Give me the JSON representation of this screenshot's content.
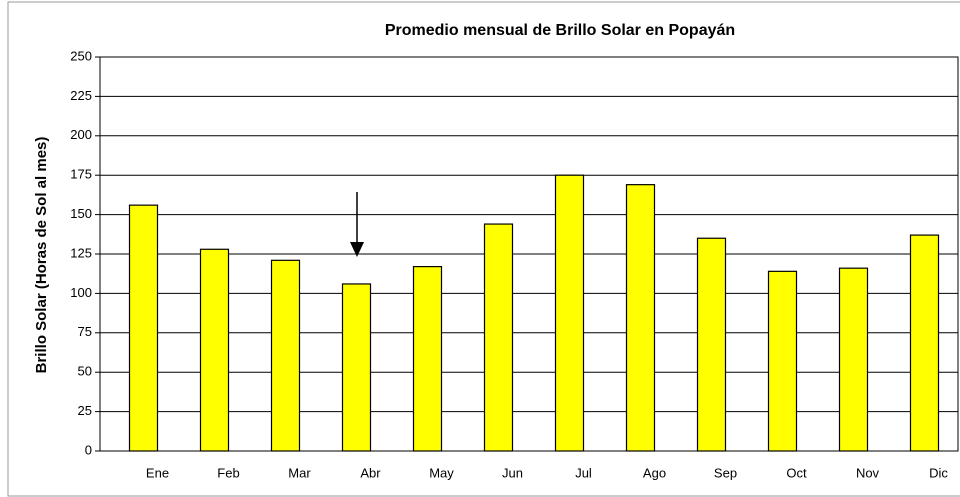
{
  "chart_data": {
    "type": "bar",
    "title": "Promedio mensual de Brillo Solar en Popayán",
    "y_label": "Brillo Solar (Horas de Sol al mes)",
    "categories": [
      "Ene",
      "Feb",
      "Mar",
      "Abr",
      "May",
      "Jun",
      "Jul",
      "Ago",
      "Sep",
      "Oct",
      "Nov",
      "Dic"
    ],
    "values": [
      156,
      128,
      121,
      106,
      117,
      144,
      175,
      169,
      135,
      114,
      116,
      137
    ],
    "color": "#ffff00",
    "ylim": [
      0,
      250
    ],
    "yticks": [
      0,
      25,
      50,
      75,
      100,
      125,
      150,
      175,
      200,
      225,
      250
    ],
    "grid": true
  }
}
